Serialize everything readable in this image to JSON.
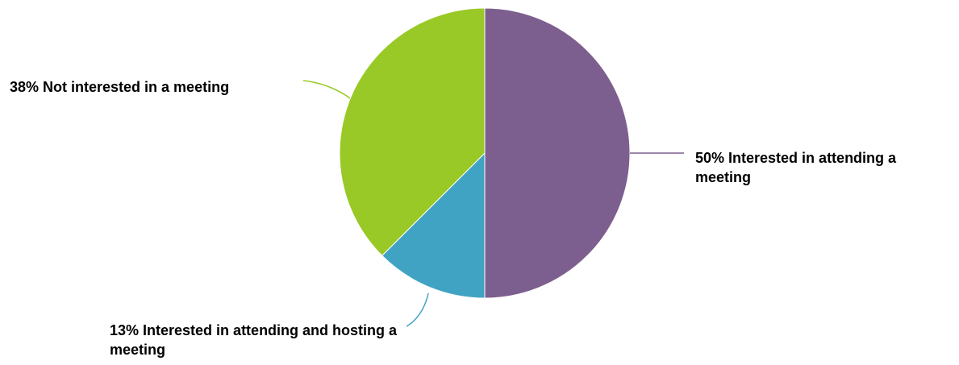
{
  "chart_data": {
    "type": "pie",
    "title": "",
    "slices": [
      {
        "label": "50% Interested in attending a meeting",
        "value": 50,
        "color": "#7D5F8F"
      },
      {
        "label": "13% Interested in attending and hosting a meeting",
        "value": 12.5,
        "color": "#41A3C3"
      },
      {
        "label": "38% Not interested in a meeting",
        "value": 37.5,
        "color": "#99C926"
      }
    ],
    "start_angle_deg": 0,
    "direction": "clockwise",
    "legend": "none"
  }
}
